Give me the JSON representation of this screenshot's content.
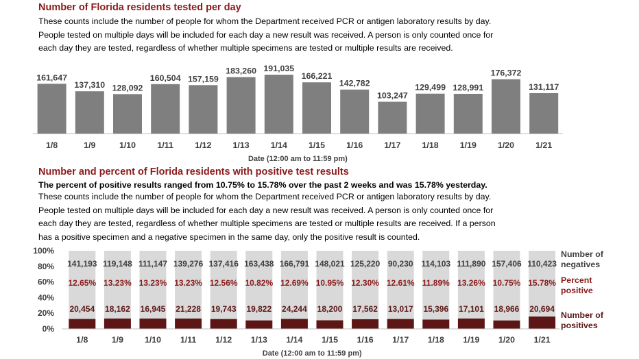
{
  "section1": {
    "title": "Number of Florida residents tested per day",
    "description": [
      "These counts include the number of people for whom the Department received PCR or antigen laboratory results by day.",
      "People tested on multiple days will be included for each day a new result was received. A person is only counted once for",
      "each day they are tested, regardless of whether multiple specimens are tested or multiple results are received."
    ]
  },
  "section2": {
    "title": "Number and percent of Florida residents with positive test results",
    "highlight": "The percent of positive results ranged from 10.75% to 15.78% over the past 2 weeks and was 15.78% yesterday.",
    "description": [
      "These counts include the number of people for whom the Department received PCR or antigen laboratory results by day.",
      "People tested on multiple days will be included for each day a new result was received. A person is only counted once for",
      "each day they are tested, regardless of whether multiple specimens are tested or multiple results are received. If a person",
      "has a positive specimen and a negative specimen in the same day, only the positive result is counted."
    ]
  },
  "legend": {
    "negatives": [
      "Number of",
      "negatives"
    ],
    "percent": [
      "Percent",
      "positive"
    ],
    "positives": [
      "Number of",
      "positives"
    ]
  },
  "colors": {
    "title": "#8b1a1a",
    "bar_gray": "#7f7f7f",
    "negative_bar": "#d9d9d9",
    "positive_bar": "#5c1616",
    "percent_text": "#8b1a1a"
  },
  "chart_data": [
    {
      "type": "bar",
      "categories": [
        "1/8",
        "1/9",
        "1/10",
        "1/11",
        "1/12",
        "1/13",
        "1/14",
        "1/15",
        "1/16",
        "1/17",
        "1/18",
        "1/19",
        "1/20",
        "1/21"
      ],
      "value_labels": [
        "161,647",
        "137,310",
        "128,092",
        "160,504",
        "157,159",
        "183,260",
        "191,035",
        "166,221",
        "142,782",
        "103,247",
        "129,499",
        "128,991",
        "176,372",
        "131,117"
      ],
      "values": [
        161647,
        137310,
        128092,
        160504,
        157159,
        183260,
        191035,
        166221,
        142782,
        103247,
        129499,
        128991,
        176372,
        131117
      ],
      "xlabel": "Date (12:00 am to 11:59 pm)",
      "ylim": [
        0,
        200000
      ]
    },
    {
      "type": "bar",
      "stacked": "percent",
      "categories": [
        "1/8",
        "1/9",
        "1/10",
        "1/11",
        "1/12",
        "1/13",
        "1/14",
        "1/15",
        "1/16",
        "1/17",
        "1/18",
        "1/19",
        "1/20",
        "1/21"
      ],
      "xlabel": "Date (12:00 am to 11:59 pm)",
      "yticks": [
        "0%",
        "20%",
        "40%",
        "60%",
        "80%",
        "100%"
      ],
      "ylim": [
        0,
        100
      ],
      "series": [
        {
          "name": "Number of positives",
          "values": [
            20454,
            18162,
            16945,
            21228,
            19743,
            19822,
            24244,
            18200,
            17562,
            13017,
            15396,
            17101,
            18966,
            20694
          ],
          "labels": [
            "20,454",
            "18,162",
            "16,945",
            "21,228",
            "19,743",
            "19,822",
            "24,244",
            "18,200",
            "17,562",
            "13,017",
            "15,396",
            "17,101",
            "18,966",
            "20,694"
          ]
        },
        {
          "name": "Number of negatives",
          "values": [
            141193,
            119148,
            111147,
            139276,
            137416,
            163438,
            166791,
            148021,
            125220,
            90230,
            114103,
            111890,
            157406,
            110423
          ],
          "labels": [
            "141,193",
            "119,148",
            "111,147",
            "139,276",
            "137,416",
            "163,438",
            "166,791",
            "148,021",
            "125,220",
            "90,230",
            "114,103",
            "111,890",
            "157,406",
            "110,423"
          ]
        }
      ],
      "percent_positive": [
        "12.65%",
        "13.23%",
        "13.23%",
        "13.23%",
        "12.56%",
        "10.82%",
        "12.69%",
        "10.95%",
        "12.30%",
        "12.61%",
        "11.89%",
        "13.26%",
        "10.75%",
        "15.78%"
      ],
      "percent_positive_values": [
        12.65,
        13.23,
        13.23,
        13.23,
        12.56,
        10.82,
        12.69,
        10.95,
        12.3,
        12.61,
        11.89,
        13.26,
        10.75,
        15.78
      ]
    }
  ]
}
